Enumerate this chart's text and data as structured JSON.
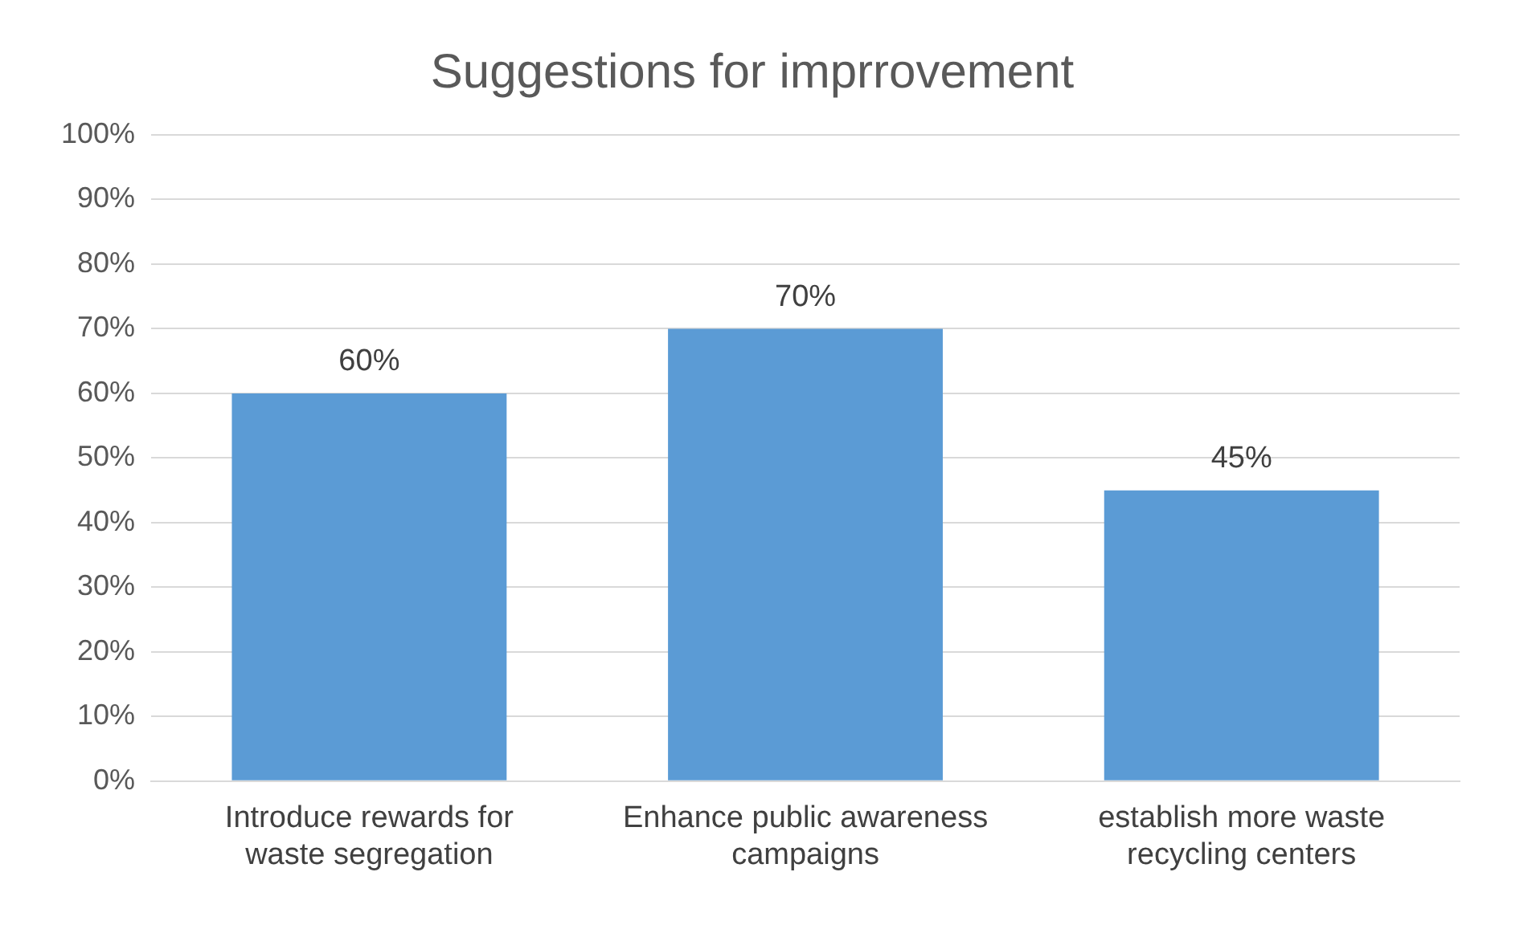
{
  "chart_data": {
    "type": "bar",
    "title": "Suggestions for imprrovement",
    "categories": [
      "Introduce rewards for waste segregation",
      "Enhance public awareness campaigns",
      "establish more waste recycling centers"
    ],
    "values": [
      60,
      70,
      45
    ],
    "color": "#5b9bd5",
    "value_labels": [
      "60%",
      "70%",
      "45%"
    ],
    "ylim": [
      0,
      100
    ],
    "yticks": [
      {
        "value": 0,
        "label": "0%"
      },
      {
        "value": 10,
        "label": "10%"
      },
      {
        "value": 20,
        "label": "20%"
      },
      {
        "value": 30,
        "label": "30%"
      },
      {
        "value": 40,
        "label": "40%"
      },
      {
        "value": 50,
        "label": "50%"
      },
      {
        "value": 60,
        "label": "60%"
      },
      {
        "value": 70,
        "label": "70%"
      },
      {
        "value": 80,
        "label": "80%"
      },
      {
        "value": 90,
        "label": "90%"
      },
      {
        "value": 100,
        "label": "100%"
      }
    ],
    "grid": "y"
  }
}
